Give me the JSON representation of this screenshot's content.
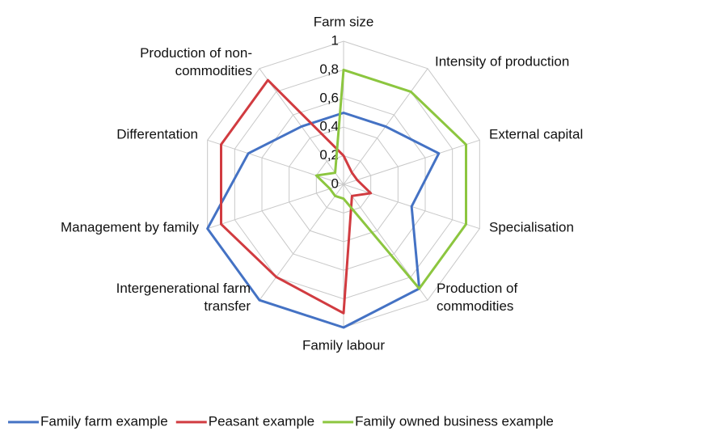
{
  "chart_data": {
    "type": "radar",
    "categories": [
      "Farm size",
      "Intensity of production",
      "External capital",
      "Specialisation",
      "Production of commodities",
      "Family labour",
      "Intergenerational farm transfer",
      "Management by family",
      "Differentation",
      "Production of non-commodities"
    ],
    "series": [
      {
        "name": "Family farm example",
        "color": "#4472c4",
        "values": [
          0.5,
          0.5,
          0.7,
          0.5,
          0.9,
          1,
          1,
          1,
          0.7,
          0.5
        ]
      },
      {
        "name": "Peasant example",
        "color": "#d13b40",
        "values": [
          0.2,
          0.1,
          0.1,
          0.2,
          0.1,
          0.9,
          0.8,
          0.9,
          0.9,
          0.9
        ]
      },
      {
        "name": "Family owned business example",
        "color": "#8cc63f",
        "values": [
          0.8,
          0.8,
          0.9,
          0.9,
          0.9,
          0.1,
          0.1,
          0.1,
          0.2,
          0.1
        ]
      }
    ],
    "rlim": [
      0,
      1
    ],
    "rticks": [
      0,
      {
        "value": 0.2,
        "label": "0,2"
      },
      {
        "value": 0.4,
        "label": "0,4"
      },
      {
        "value": 0.6,
        "label": "0,6"
      },
      {
        "value": 0.8,
        "label": "0,8"
      },
      1
    ],
    "grid": true,
    "legend": "bottom"
  }
}
